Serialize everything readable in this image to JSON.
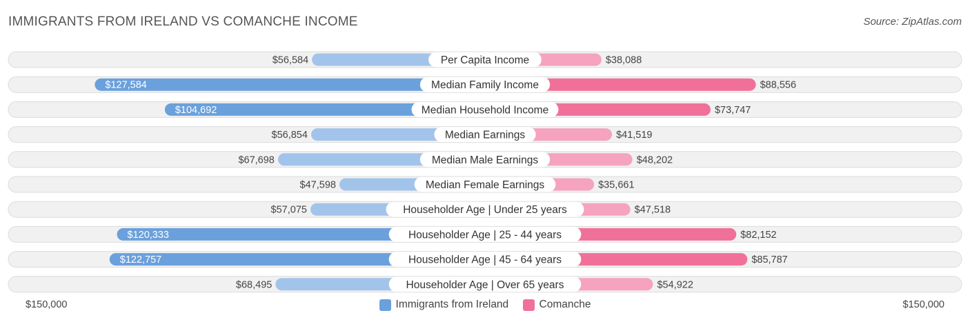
{
  "header": {
    "title": "IMMIGRANTS FROM IRELAND VS COMANCHE INCOME",
    "source": "Source: ZipAtlas.com"
  },
  "colors": {
    "left_dark": "#6aa0dc",
    "left_light": "#a3c4ea",
    "right_dark": "#f07099",
    "right_light": "#f5a3be"
  },
  "axis": {
    "left_label": "$150,000",
    "right_label": "$150,000"
  },
  "legend": {
    "left": "Immigrants from Ireland",
    "right": "Comanche"
  },
  "chart_data": {
    "type": "bar",
    "orientation": "diverging-horizontal",
    "title": "IMMIGRANTS FROM IRELAND VS COMANCHE INCOME",
    "xlim": [
      0,
      150000
    ],
    "categories": [
      "Per Capita Income",
      "Median Family Income",
      "Median Household Income",
      "Median Earnings",
      "Median Male Earnings",
      "Median Female Earnings",
      "Householder Age | Under 25 years",
      "Householder Age | 25 - 44 years",
      "Householder Age | 45 - 64 years",
      "Householder Age | Over 65 years"
    ],
    "series": [
      {
        "name": "Immigrants from Ireland",
        "values": [
          56584,
          127584,
          104692,
          56854,
          67698,
          47598,
          57075,
          120333,
          122757,
          68495
        ],
        "labels": [
          "$56,584",
          "$127,584",
          "$104,692",
          "$56,854",
          "$67,698",
          "$47,598",
          "$57,075",
          "$120,333",
          "$122,757",
          "$68,495"
        ]
      },
      {
        "name": "Comanche",
        "values": [
          38088,
          88556,
          73747,
          41519,
          48202,
          35661,
          47518,
          82152,
          85787,
          54922
        ],
        "labels": [
          "$38,088",
          "$88,556",
          "$73,747",
          "$41,519",
          "$48,202",
          "$35,661",
          "$47,518",
          "$82,152",
          "$85,787",
          "$54,922"
        ]
      }
    ],
    "legend_position": "bottom-center"
  }
}
